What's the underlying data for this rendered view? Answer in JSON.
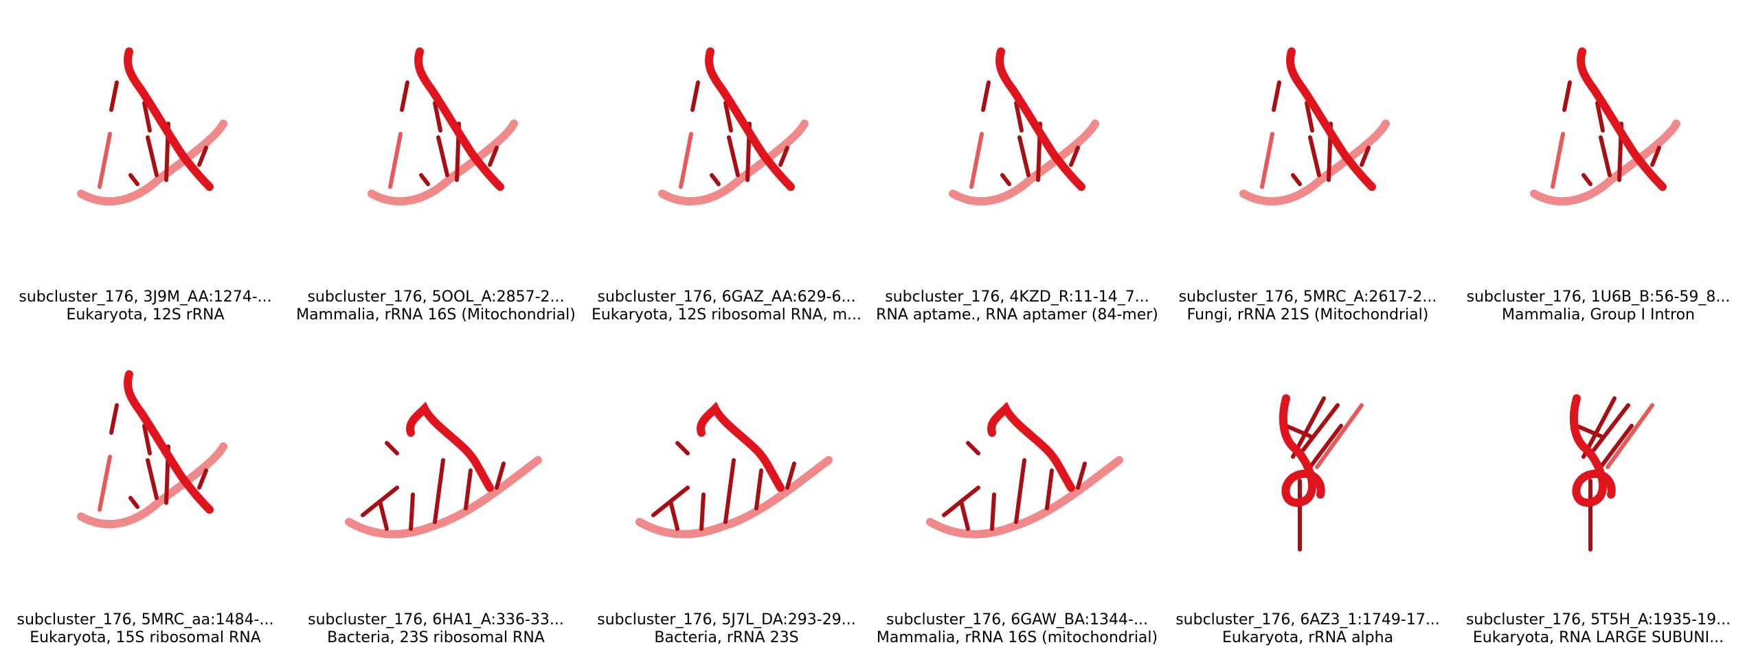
{
  "panels": [
    {
      "title": "subcluster_176, 3J9M_AA:1274-...",
      "subtitle": "Eukaryota, 12S rRNA",
      "shape": "strand"
    },
    {
      "title": "subcluster_176, 5OOL_A:2857-2...",
      "subtitle": "Mammalia, rRNA 16S (Mitochondrial)",
      "shape": "strand"
    },
    {
      "title": "subcluster_176, 6GAZ_AA:629-6...",
      "subtitle": "Eukaryota, 12S ribosomal RNA, m...",
      "shape": "strand"
    },
    {
      "title": "subcluster_176, 4KZD_R:11-14_7...",
      "subtitle": "RNA aptame., RNA aptamer (84-mer)",
      "shape": "strand"
    },
    {
      "title": "subcluster_176, 5MRC_A:2617-2...",
      "subtitle": "Fungi, rRNA 21S (Mitochondrial)",
      "shape": "strand"
    },
    {
      "title": "subcluster_176, 1U6B_B:56-59_8...",
      "subtitle": "Mammalia, Group I Intron",
      "shape": "strand"
    },
    {
      "title": "subcluster_176, 5MRC_aa:1484-...",
      "subtitle": "Eukaryota, 15S ribosomal RNA",
      "shape": "strand"
    },
    {
      "title": "subcluster_176, 6HA1_A:336-33...",
      "subtitle": "Bacteria, 23S ribosomal RNA",
      "shape": "bent"
    },
    {
      "title": "subcluster_176, 5J7L_DA:293-29...",
      "subtitle": "Bacteria, rRNA 23S",
      "shape": "bent"
    },
    {
      "title": "subcluster_176, 6GAW_BA:1344-...",
      "subtitle": "Mammalia, rRNA 16S (mitochondrial)",
      "shape": "bent"
    },
    {
      "title": "subcluster_176, 6AZ3_1:1749-17...",
      "subtitle": "Eukaryota, rRNA alpha",
      "shape": "loop"
    },
    {
      "title": "subcluster_176, 5T5H_A:1935-19...",
      "subtitle": "Eukaryota, RNA LARGE SUBUNI...",
      "shape": "loop"
    }
  ],
  "colors": {
    "strand_light": "#f08a8a",
    "strand_dark": "#e0141c",
    "stick": "#a80f14",
    "stick_light": "#e65a5a"
  }
}
